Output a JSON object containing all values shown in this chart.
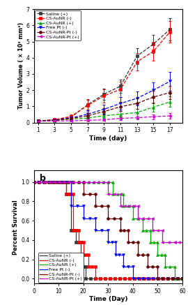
{
  "panel_a": {
    "title": "a",
    "xlabel": "Time (day)",
    "ylabel": "Tumor Volume ( × 10³ mm³)",
    "xlim": [
      0.5,
      18.5
    ],
    "ylim": [
      0,
      7
    ],
    "yticks": [
      0,
      1,
      2,
      3,
      4,
      5,
      6,
      7
    ],
    "xticks": [
      1,
      3,
      5,
      7,
      9,
      11,
      13,
      15,
      17
    ],
    "days": [
      1,
      3,
      5,
      7,
      9,
      11,
      13,
      15,
      17
    ],
    "series": {
      "Saline (+)": {
        "color": "#333333",
        "marker": "s",
        "linestyle": "--",
        "values": [
          0.1,
          0.17,
          0.32,
          1.1,
          1.75,
          2.25,
          4.1,
          4.85,
          5.75
        ],
        "errors": [
          0.05,
          0.07,
          0.12,
          0.3,
          0.35,
          0.42,
          0.48,
          0.55,
          0.68
        ]
      },
      "CS-AuNR (-)": {
        "color": "#ff0000",
        "marker": "s",
        "linestyle": "--",
        "values": [
          0.1,
          0.18,
          0.38,
          1.05,
          1.65,
          2.05,
          3.75,
          4.4,
          5.6
        ],
        "errors": [
          0.05,
          0.08,
          0.14,
          0.38,
          0.4,
          0.48,
          0.52,
          0.58,
          0.68
        ]
      },
      "CS-AuNR (+)": {
        "color": "#00aa00",
        "marker": "^",
        "linestyle": "--",
        "values": [
          0.1,
          0.13,
          0.22,
          0.28,
          0.42,
          0.52,
          0.62,
          0.95,
          1.28
        ],
        "errors": [
          0.04,
          0.05,
          0.08,
          0.12,
          0.15,
          0.18,
          0.22,
          0.28,
          0.32
        ]
      },
      "Free Pt (-)": {
        "color": "#0000ff",
        "marker": "v",
        "linestyle": "--",
        "values": [
          0.1,
          0.15,
          0.28,
          0.52,
          0.82,
          1.18,
          1.5,
          2.0,
          2.55
        ],
        "errors": [
          0.05,
          0.07,
          0.1,
          0.22,
          0.28,
          0.38,
          0.42,
          0.48,
          0.58
        ]
      },
      "CS-AuNR-Pt (-)": {
        "color": "#660000",
        "marker": "o",
        "linestyle": "--",
        "values": [
          0.1,
          0.14,
          0.25,
          0.42,
          0.68,
          0.98,
          1.18,
          1.58,
          1.85
        ],
        "errors": [
          0.04,
          0.06,
          0.09,
          0.15,
          0.2,
          0.28,
          0.32,
          0.38,
          0.42
        ]
      },
      "CS-AuNR-Pt (+)": {
        "color": "#cc00cc",
        "marker": "<",
        "linestyle": "--",
        "values": [
          0.08,
          0.1,
          0.11,
          0.14,
          0.17,
          0.26,
          0.3,
          0.36,
          0.42
        ],
        "errors": [
          0.03,
          0.04,
          0.05,
          0.06,
          0.07,
          0.1,
          0.12,
          0.15,
          0.18
        ]
      }
    }
  },
  "panel_b": {
    "title": "b",
    "xlabel": "Time (Day)",
    "ylabel": "Percent Survival",
    "xlim": [
      0,
      60
    ],
    "ylim": [
      -0.05,
      1.12
    ],
    "yticks": [
      0.0,
      0.2,
      0.4,
      0.6,
      0.8,
      1.0
    ],
    "xticks": [
      0,
      10,
      20,
      30,
      40,
      50,
      60
    ],
    "series": {
      "Saline (+)": {
        "color": "#333333",
        "marker": "s",
        "steps": [
          [
            0,
            1.0
          ],
          [
            13,
            1.0
          ],
          [
            13,
            0.875
          ],
          [
            15,
            0.875
          ],
          [
            15,
            0.5
          ],
          [
            17,
            0.5
          ],
          [
            17,
            0.375
          ],
          [
            19,
            0.375
          ],
          [
            19,
            0.125
          ],
          [
            21,
            0.125
          ],
          [
            21,
            0.0
          ],
          [
            60,
            0.0
          ]
        ]
      },
      "CS-AuNR (-)": {
        "color": "#ff0000",
        "marker": "s",
        "steps": [
          [
            0,
            1.0
          ],
          [
            13,
            1.0
          ],
          [
            13,
            0.875
          ],
          [
            16,
            0.875
          ],
          [
            16,
            0.5
          ],
          [
            18,
            0.5
          ],
          [
            18,
            0.375
          ],
          [
            20,
            0.375
          ],
          [
            20,
            0.25
          ],
          [
            22,
            0.25
          ],
          [
            22,
            0.125
          ],
          [
            25,
            0.125
          ],
          [
            25,
            0.0
          ],
          [
            60,
            0.0
          ]
        ]
      },
      "CS-AuNR (+)": {
        "color": "#00aa00",
        "marker": "^",
        "steps": [
          [
            0,
            1.0
          ],
          [
            32,
            1.0
          ],
          [
            32,
            0.875
          ],
          [
            36,
            0.875
          ],
          [
            36,
            0.75
          ],
          [
            40,
            0.75
          ],
          [
            40,
            0.625
          ],
          [
            44,
            0.625
          ],
          [
            44,
            0.5
          ],
          [
            47,
            0.5
          ],
          [
            47,
            0.375
          ],
          [
            50,
            0.375
          ],
          [
            50,
            0.25
          ],
          [
            53,
            0.25
          ],
          [
            53,
            0.125
          ],
          [
            57,
            0.125
          ],
          [
            57,
            0.0
          ],
          [
            60,
            0.0
          ]
        ]
      },
      "Free Pt (-)": {
        "color": "#0000ff",
        "marker": "v",
        "steps": [
          [
            0,
            1.0
          ],
          [
            15,
            1.0
          ],
          [
            15,
            0.75
          ],
          [
            20,
            0.75
          ],
          [
            20,
            0.625
          ],
          [
            25,
            0.625
          ],
          [
            25,
            0.5
          ],
          [
            30,
            0.5
          ],
          [
            30,
            0.375
          ],
          [
            33,
            0.375
          ],
          [
            33,
            0.25
          ],
          [
            36,
            0.25
          ],
          [
            36,
            0.125
          ],
          [
            40,
            0.125
          ],
          [
            40,
            0.0
          ],
          [
            60,
            0.0
          ]
        ]
      },
      "CS-AuNR-Pt (-)": {
        "color": "#660000",
        "marker": "o",
        "steps": [
          [
            0,
            1.0
          ],
          [
            20,
            1.0
          ],
          [
            20,
            0.875
          ],
          [
            25,
            0.875
          ],
          [
            25,
            0.75
          ],
          [
            30,
            0.75
          ],
          [
            30,
            0.625
          ],
          [
            35,
            0.625
          ],
          [
            35,
            0.5
          ],
          [
            38,
            0.5
          ],
          [
            38,
            0.375
          ],
          [
            42,
            0.375
          ],
          [
            42,
            0.25
          ],
          [
            46,
            0.25
          ],
          [
            46,
            0.125
          ],
          [
            50,
            0.125
          ],
          [
            50,
            0.0
          ],
          [
            60,
            0.0
          ]
        ]
      },
      "CS-AuNR-Pt (+)": {
        "color": "#cc00cc",
        "marker": "<",
        "steps": [
          [
            0,
            1.0
          ],
          [
            30,
            1.0
          ],
          [
            30,
            0.875
          ],
          [
            35,
            0.875
          ],
          [
            35,
            0.75
          ],
          [
            42,
            0.75
          ],
          [
            42,
            0.625
          ],
          [
            48,
            0.625
          ],
          [
            48,
            0.5
          ],
          [
            52,
            0.5
          ],
          [
            52,
            0.375
          ],
          [
            57,
            0.375
          ],
          [
            57,
            0.375
          ],
          [
            60,
            0.375
          ]
        ]
      }
    }
  }
}
